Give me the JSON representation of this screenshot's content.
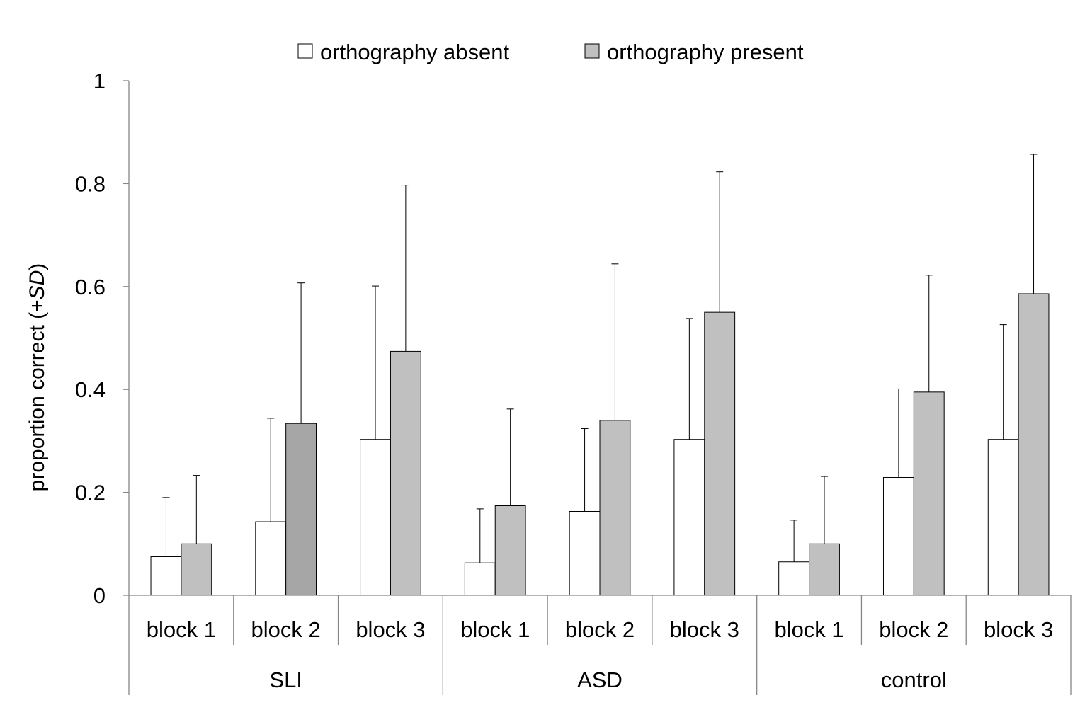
{
  "chart_data": {
    "type": "bar",
    "title": "",
    "ylabel_prefix": "proportion correct (+",
    "ylabel_italic": "SD",
    "ylabel_suffix": ")",
    "ylim": [
      0,
      1
    ],
    "yticks": [
      {
        "value": 0,
        "label": "0"
      },
      {
        "value": 0.2,
        "label": "0.2"
      },
      {
        "value": 0.4,
        "label": "0.4"
      },
      {
        "value": 0.6,
        "label": "0.6"
      },
      {
        "value": 0.8,
        "label": "0.8"
      },
      {
        "value": 1,
        "label": "1"
      }
    ],
    "legend_position": "top-center",
    "grid": false,
    "groups": [
      {
        "name": "SLI",
        "categories": [
          "block 1",
          "block 2",
          "block 3"
        ]
      },
      {
        "name": "ASD",
        "categories": [
          "block 1",
          "block 2",
          "block 3"
        ]
      },
      {
        "name": "control",
        "categories": [
          "block 1",
          "block 2",
          "block 3"
        ]
      }
    ],
    "series": [
      {
        "name": "orthography absent",
        "color": "#ffffff",
        "values": [
          0.075,
          0.143,
          0.303,
          0.063,
          0.163,
          0.303,
          0.065,
          0.229,
          0.303
        ],
        "sd_upper": [
          0.19,
          0.344,
          0.601,
          0.168,
          0.324,
          0.538,
          0.146,
          0.401,
          0.526
        ]
      },
      {
        "name": "orthography present",
        "color": "#c0c0c0",
        "values": [
          0.1,
          0.334,
          0.474,
          0.174,
          0.34,
          0.55,
          0.1,
          0.395,
          0.586
        ],
        "sd_upper": [
          0.233,
          0.607,
          0.797,
          0.362,
          0.644,
          0.823,
          0.231,
          0.622,
          0.857
        ],
        "special_colors": {
          "1": "#a6a6a6"
        }
      }
    ]
  }
}
